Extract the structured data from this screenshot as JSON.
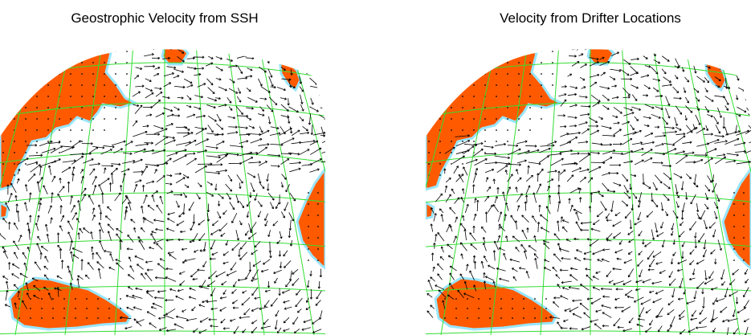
{
  "panels": [
    {
      "id": "left",
      "title": "Geostrophic Velocity from SSH",
      "seed": 17
    },
    {
      "id": "right",
      "title": "Velocity from Drifter Locations",
      "seed": 91
    }
  ],
  "colors": {
    "land": "#ff5a00",
    "coast": "#99e6ff",
    "grid": "#33dd33",
    "arrow": "#000000",
    "ocean": "#ffffff"
  }
}
